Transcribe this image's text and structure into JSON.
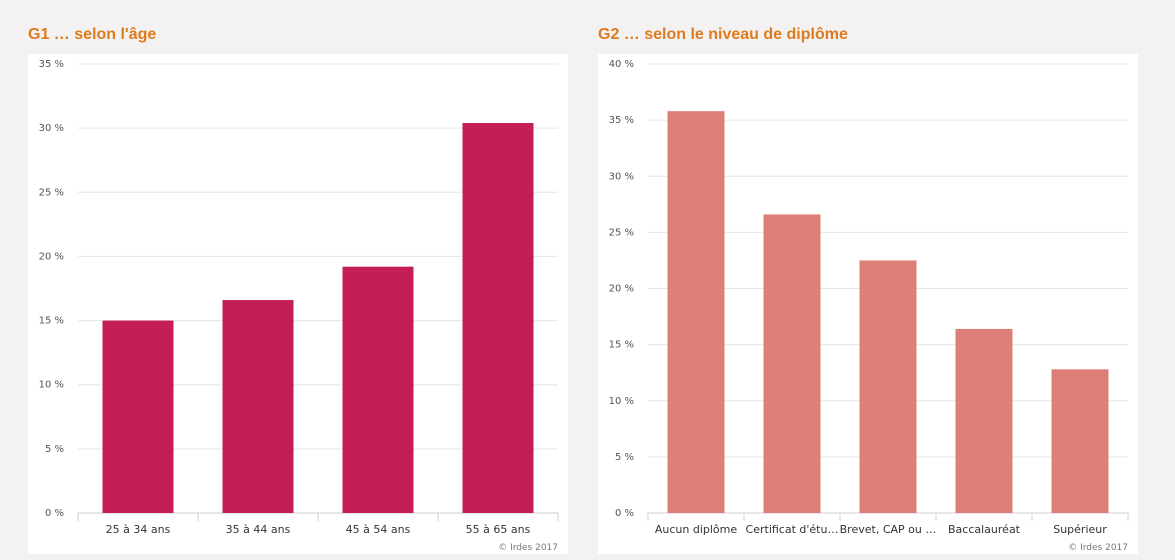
{
  "chart_data": [
    {
      "type": "bar",
      "title": "G1 … selon l'âge",
      "categories": [
        "25 à 34 ans",
        "35 à 44 ans",
        "45 à 54 ans",
        "55 à 65 ans"
      ],
      "values": [
        15.0,
        16.6,
        19.2,
        30.4
      ],
      "ylim": [
        0,
        35
      ],
      "yticks": [
        "0 %",
        "5 %",
        "10 %",
        "15 %",
        "20 %",
        "25 %",
        "30 %",
        "35 %"
      ],
      "color": "#c41e56",
      "grid": true,
      "credit": "© Irdes 2017"
    },
    {
      "type": "bar",
      "title": "G2 … selon le niveau de diplôme",
      "categories": [
        "Aucun diplôme",
        "Certificat d'étu…",
        "Brevet, CAP ou …",
        "Baccalauréat",
        "Supérieur"
      ],
      "values": [
        35.8,
        26.6,
        22.5,
        16.4,
        12.8
      ],
      "ylim": [
        0,
        40
      ],
      "yticks": [
        "0 %",
        "5 %",
        "10 %",
        "15 %",
        "20 %",
        "25 %",
        "30 %",
        "35 %",
        "40 %"
      ],
      "color": "#de7f77",
      "grid": true,
      "credit": "© Irdes 2017"
    }
  ]
}
